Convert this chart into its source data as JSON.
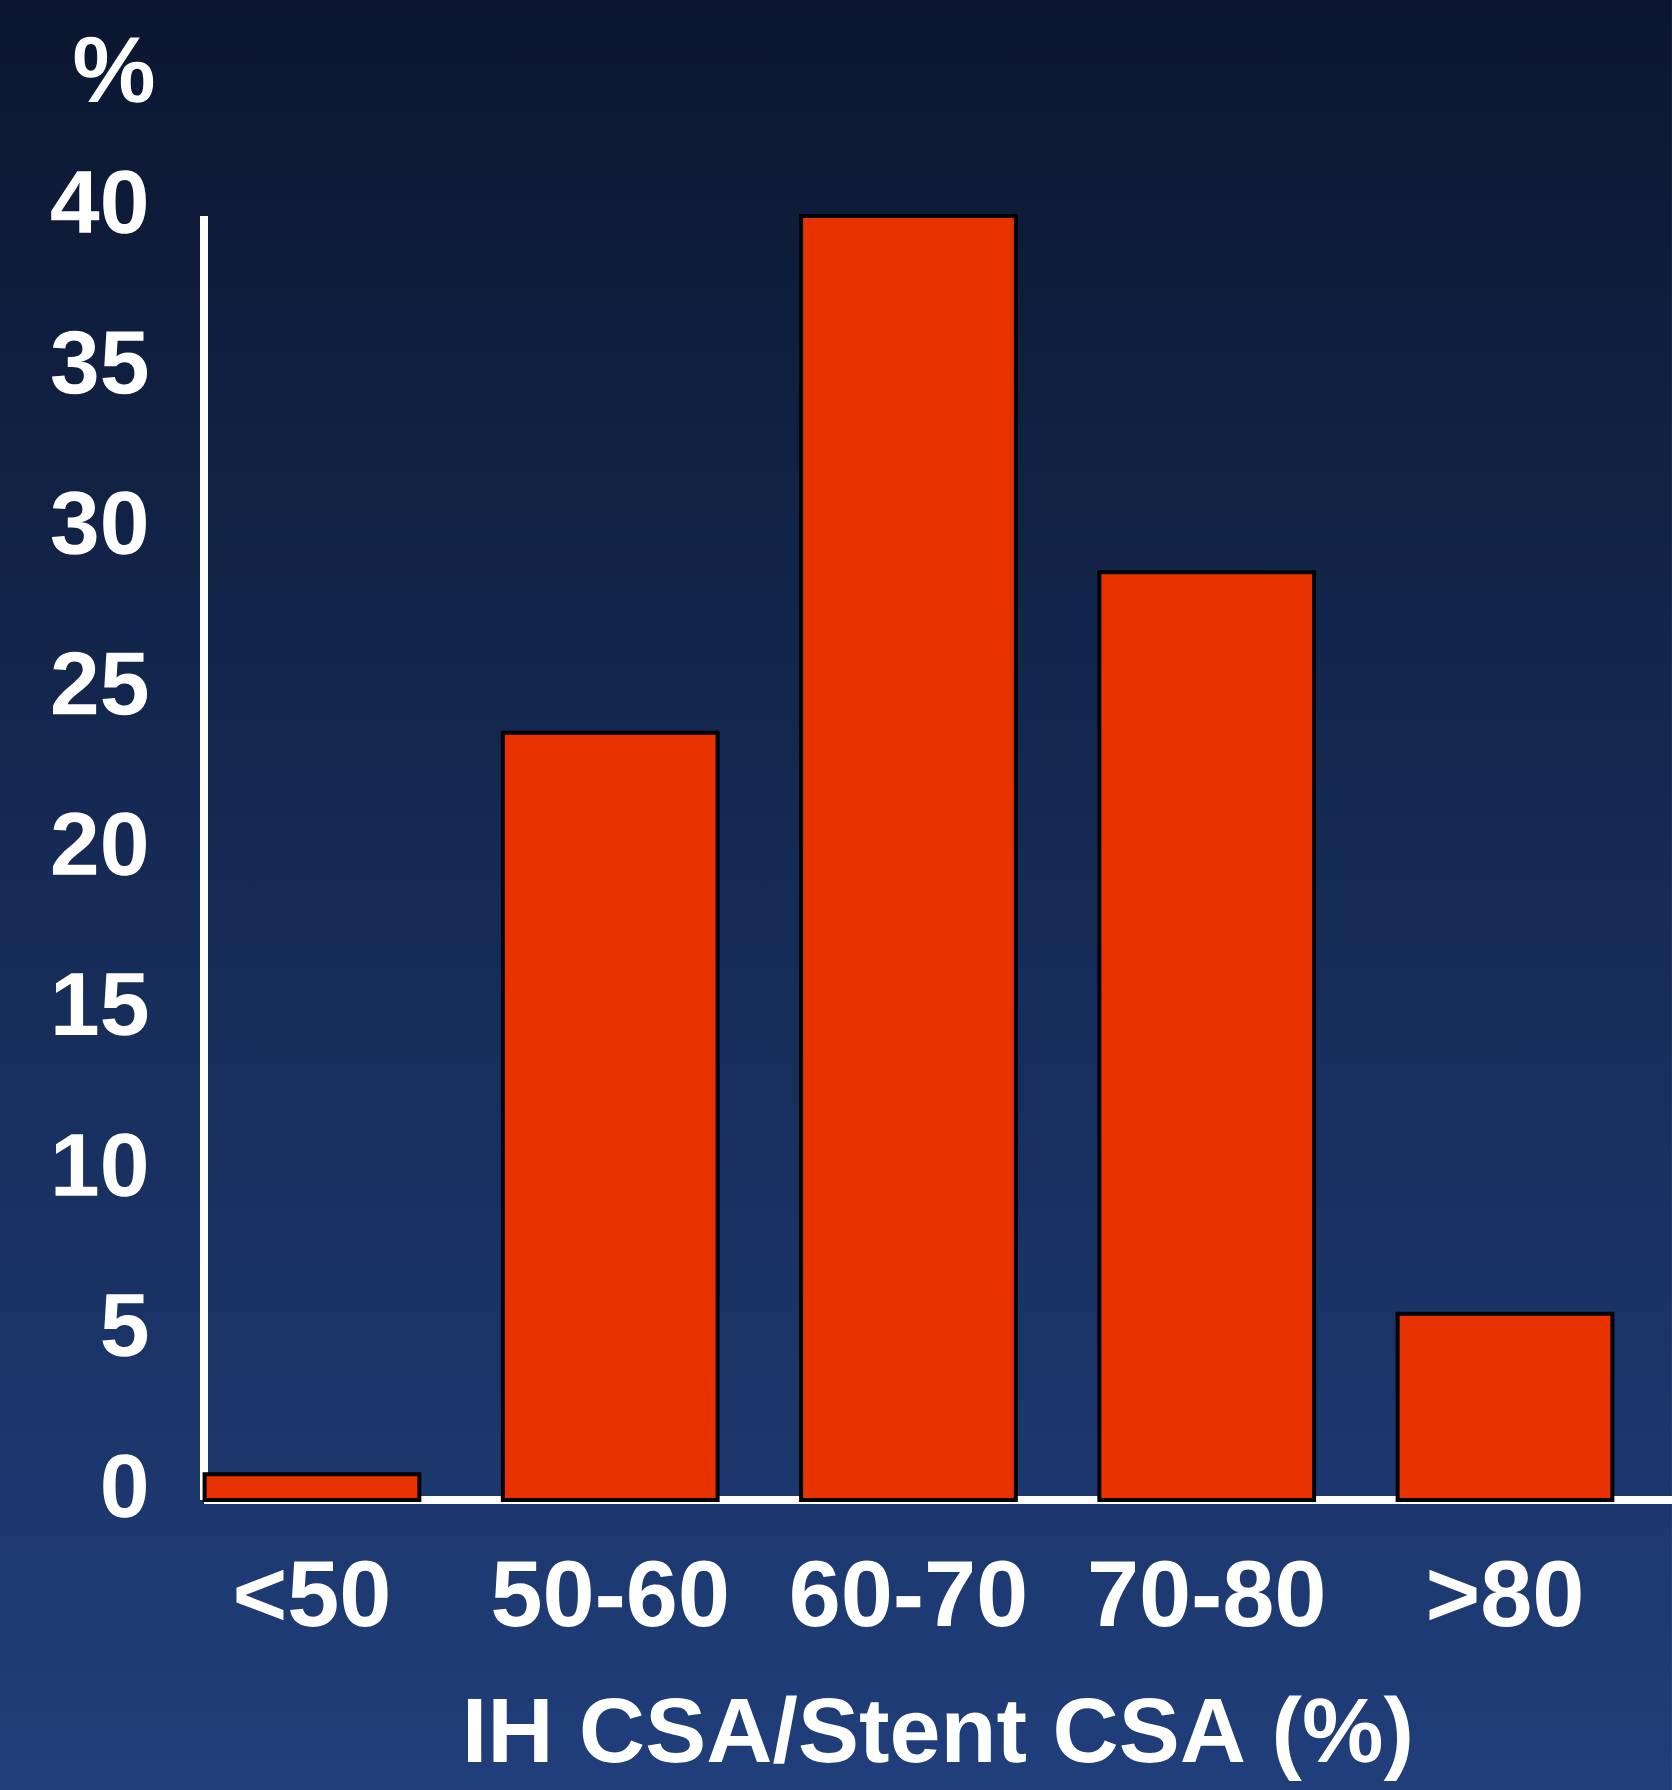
{
  "chart_data": {
    "type": "bar",
    "ylabel": "%",
    "xlabel": "IH CSA/Stent CSA (%)",
    "categories": [
      "<50",
      "50-60",
      "60-70",
      "70-80",
      ">80"
    ],
    "values": [
      0.8,
      23.9,
      40,
      28.9,
      5.8
    ],
    "color": "#e83300",
    "ylim": [
      0,
      40
    ],
    "yticks": [
      0,
      5,
      10,
      15,
      20,
      25,
      30,
      35,
      40
    ]
  }
}
